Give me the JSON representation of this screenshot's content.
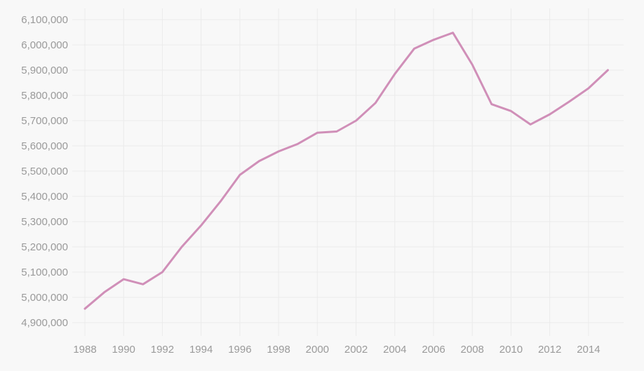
{
  "chart_data": {
    "type": "line",
    "title": "",
    "xlabel": "",
    "ylabel": "",
    "grid": true,
    "legend": "none",
    "xlim": [
      1988,
      2015
    ],
    "ylim": [
      4900000,
      6100000
    ],
    "x_ticks": [
      1988,
      1990,
      1992,
      1994,
      1996,
      1998,
      2000,
      2002,
      2004,
      2006,
      2008,
      2010,
      2012,
      2014
    ],
    "x_tick_labels": [
      "1988",
      "1990",
      "1992",
      "1994",
      "1996",
      "1998",
      "2000",
      "2002",
      "2004",
      "2006",
      "2008",
      "2010",
      "2012",
      "2014"
    ],
    "y_ticks": [
      4900000,
      5000000,
      5100000,
      5200000,
      5300000,
      5400000,
      5500000,
      5600000,
      5700000,
      5800000,
      5900000,
      6000000,
      6100000
    ],
    "y_tick_labels": [
      "4,900,000",
      "5,000,000",
      "5,100,000",
      "5,200,000",
      "5,300,000",
      "5,400,000",
      "5,500,000",
      "5,600,000",
      "5,700,000",
      "5,800,000",
      "5,900,000",
      "6,000,000",
      "6,100,000"
    ],
    "series": [
      {
        "color": "#d08fb8",
        "x": [
          1988,
          1989,
          1990,
          1991,
          1992,
          1993,
          1994,
          1995,
          1996,
          1997,
          1998,
          1999,
          2000,
          2001,
          2002,
          2003,
          2004,
          2005,
          2006,
          2007,
          2008,
          2009,
          2010,
          2011,
          2012,
          2013,
          2014,
          2015
        ],
        "values": [
          4955000,
          5020000,
          5072000,
          5052000,
          5100000,
          5200000,
          5285000,
          5380000,
          5485000,
          5540000,
          5578000,
          5608000,
          5652000,
          5657000,
          5700000,
          5770000,
          5885000,
          5985000,
          6020000,
          6048000,
          5922000,
          5765000,
          5738000,
          5685000,
          5725000,
          5775000,
          5828000,
          5900000
        ]
      }
    ]
  }
}
